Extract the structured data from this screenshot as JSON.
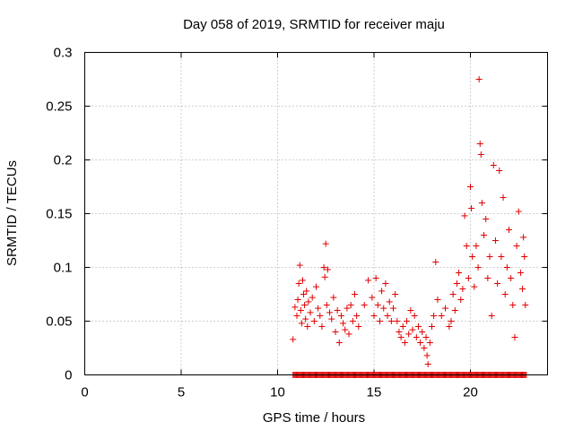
{
  "chart_data": {
    "type": "scatter",
    "title": "Day 058 of 2019, SRMTID for receiver maju",
    "xlabel": "GPS time / hours",
    "ylabel": "SRMTID / TECUs",
    "xlim": [
      0,
      24
    ],
    "ylim": [
      0,
      0.3
    ],
    "xticks": [
      0,
      5,
      10,
      15,
      20
    ],
    "xtick_labels": [
      "0",
      "5",
      "10",
      "15",
      "20"
    ],
    "yticks": [
      0,
      0.05,
      0.1,
      0.15,
      0.2,
      0.25,
      0.3
    ],
    "ytick_labels": [
      "0",
      "0.05",
      "0.1",
      "0.15",
      "0.2",
      "0.25",
      "0.3"
    ],
    "grid": true,
    "marker": "+",
    "marker_color": "#e00000",
    "series": [
      {
        "name": "SRMTID",
        "points": [
          [
            10.8,
            0.033
          ],
          [
            10.9,
            0.063
          ],
          [
            11.0,
            0.055
          ],
          [
            11.05,
            0.07
          ],
          [
            11.1,
            0.085
          ],
          [
            11.15,
            0.102
          ],
          [
            11.2,
            0.06
          ],
          [
            11.25,
            0.048
          ],
          [
            11.3,
            0.088
          ],
          [
            11.35,
            0.075
          ],
          [
            11.4,
            0.065
          ],
          [
            11.45,
            0.052
          ],
          [
            11.5,
            0.078
          ],
          [
            11.55,
            0.045
          ],
          [
            11.6,
            0.068
          ],
          [
            11.7,
            0.058
          ],
          [
            11.8,
            0.072
          ],
          [
            11.9,
            0.05
          ],
          [
            12.0,
            0.082
          ],
          [
            12.1,
            0.062
          ],
          [
            12.2,
            0.055
          ],
          [
            12.3,
            0.045
          ],
          [
            12.4,
            0.1
          ],
          [
            12.45,
            0.091
          ],
          [
            12.5,
            0.122
          ],
          [
            12.55,
            0.065
          ],
          [
            12.6,
            0.098
          ],
          [
            12.7,
            0.058
          ],
          [
            12.8,
            0.052
          ],
          [
            12.9,
            0.072
          ],
          [
            13.0,
            0.04
          ],
          [
            13.1,
            0.06
          ],
          [
            13.2,
            0.03
          ],
          [
            13.3,
            0.055
          ],
          [
            13.4,
            0.048
          ],
          [
            13.5,
            0.042
          ],
          [
            13.6,
            0.062
          ],
          [
            13.7,
            0.038
          ],
          [
            13.8,
            0.065
          ],
          [
            13.9,
            0.05
          ],
          [
            14.0,
            0.075
          ],
          [
            14.1,
            0.055
          ],
          [
            14.2,
            0.045
          ],
          [
            14.5,
            0.065
          ],
          [
            14.7,
            0.088
          ],
          [
            14.9,
            0.072
          ],
          [
            15.0,
            0.055
          ],
          [
            15.1,
            0.09
          ],
          [
            15.2,
            0.065
          ],
          [
            15.3,
            0.05
          ],
          [
            15.4,
            0.078
          ],
          [
            15.5,
            0.062
          ],
          [
            15.6,
            0.085
          ],
          [
            15.7,
            0.055
          ],
          [
            15.8,
            0.068
          ],
          [
            15.9,
            0.05
          ],
          [
            16.0,
            0.062
          ],
          [
            16.1,
            0.075
          ],
          [
            16.2,
            0.05
          ],
          [
            16.3,
            0.04
          ],
          [
            16.4,
            0.035
          ],
          [
            16.5,
            0.045
          ],
          [
            16.6,
            0.03
          ],
          [
            16.7,
            0.05
          ],
          [
            16.8,
            0.038
          ],
          [
            16.9,
            0.06
          ],
          [
            17.0,
            0.042
          ],
          [
            17.1,
            0.055
          ],
          [
            17.2,
            0.035
          ],
          [
            17.3,
            0.045
          ],
          [
            17.4,
            0.03
          ],
          [
            17.5,
            0.04
          ],
          [
            17.6,
            0.025
          ],
          [
            17.7,
            0.035
          ],
          [
            17.75,
            0.018
          ],
          [
            17.8,
            0.01
          ],
          [
            17.9,
            0.03
          ],
          [
            18.0,
            0.045
          ],
          [
            18.1,
            0.055
          ],
          [
            18.2,
            0.105
          ],
          [
            18.3,
            0.07
          ],
          [
            18.5,
            0.055
          ],
          [
            18.7,
            0.062
          ],
          [
            18.9,
            0.045
          ],
          [
            19.0,
            0.05
          ],
          [
            19.1,
            0.075
          ],
          [
            19.2,
            0.06
          ],
          [
            19.3,
            0.085
          ],
          [
            19.4,
            0.095
          ],
          [
            19.5,
            0.07
          ],
          [
            19.6,
            0.08
          ],
          [
            19.7,
            0.148
          ],
          [
            19.8,
            0.12
          ],
          [
            19.9,
            0.09
          ],
          [
            20.0,
            0.175
          ],
          [
            20.05,
            0.155
          ],
          [
            20.1,
            0.11
          ],
          [
            20.2,
            0.082
          ],
          [
            20.3,
            0.12
          ],
          [
            20.4,
            0.1
          ],
          [
            20.45,
            0.275
          ],
          [
            20.5,
            0.215
          ],
          [
            20.55,
            0.205
          ],
          [
            20.6,
            0.16
          ],
          [
            20.7,
            0.13
          ],
          [
            20.8,
            0.145
          ],
          [
            20.9,
            0.09
          ],
          [
            21.0,
            0.11
          ],
          [
            21.1,
            0.055
          ],
          [
            21.2,
            0.195
          ],
          [
            21.3,
            0.125
          ],
          [
            21.4,
            0.085
          ],
          [
            21.5,
            0.19
          ],
          [
            21.6,
            0.11
          ],
          [
            21.7,
            0.165
          ],
          [
            21.8,
            0.075
          ],
          [
            21.9,
            0.1
          ],
          [
            22.0,
            0.135
          ],
          [
            22.1,
            0.09
          ],
          [
            22.2,
            0.065
          ],
          [
            22.3,
            0.035
          ],
          [
            22.4,
            0.12
          ],
          [
            22.5,
            0.152
          ],
          [
            22.6,
            0.095
          ],
          [
            22.7,
            0.08
          ],
          [
            22.75,
            0.128
          ],
          [
            22.8,
            0.11
          ],
          [
            22.85,
            0.065
          ]
        ]
      }
    ],
    "zero_band": {
      "x_start": 10.8,
      "x_end": 22.9,
      "y": 0
    }
  }
}
